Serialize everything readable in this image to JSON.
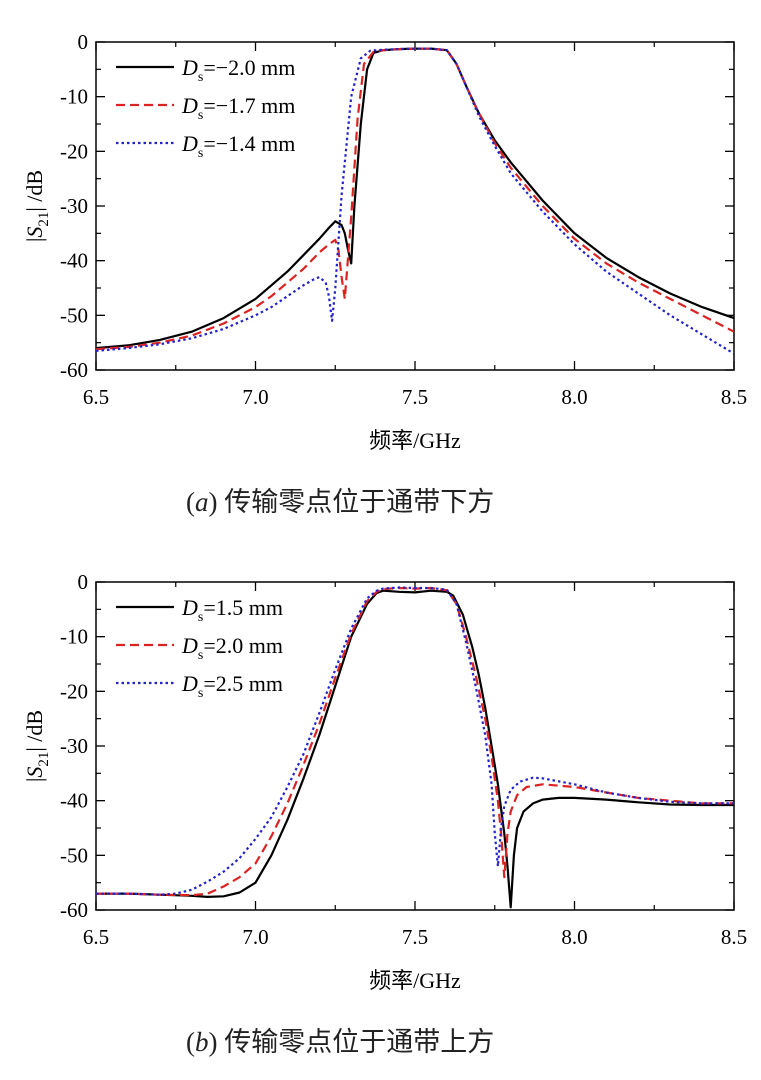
{
  "chart_data": [
    {
      "type": "line",
      "xlabel": "频率/GHz",
      "ylabel": "|S21| /dB",
      "xlim": [
        6.5,
        8.5
      ],
      "ylim": [
        -60,
        0
      ],
      "xticks": [
        "6.5",
        "7.0",
        "7.5",
        "8.0",
        "8.5"
      ],
      "yticks": [
        "0",
        "-10",
        "-20",
        "-30",
        "-40",
        "-50",
        "-60"
      ],
      "legend_position": "top-left",
      "caption": {
        "label": "a",
        "text": "传输零点位于通带下方"
      },
      "series": [
        {
          "name": "Ds=−2.0 mm",
          "legend_value": "=−2.0 mm",
          "color": "#000000",
          "dash": "solid",
          "x": [
            6.5,
            6.6,
            6.7,
            6.8,
            6.9,
            7.0,
            7.05,
            7.1,
            7.15,
            7.2,
            7.23,
            7.25,
            7.27,
            7.28,
            7.29,
            7.3,
            7.31,
            7.33,
            7.35,
            7.37,
            7.4,
            7.45,
            7.5,
            7.55,
            7.6,
            7.63,
            7.66,
            7.7,
            7.75,
            7.8,
            7.9,
            8.0,
            8.1,
            8.2,
            8.3,
            8.4,
            8.5
          ],
          "y": [
            -56,
            -55.5,
            -54.5,
            -53,
            -50.5,
            -47,
            -44.5,
            -42,
            -39,
            -36,
            -34,
            -32.8,
            -33.5,
            -35,
            -38,
            -40.5,
            -30,
            -15,
            -5,
            -2,
            -1.5,
            -1.3,
            -1.2,
            -1.2,
            -1.5,
            -4,
            -8,
            -13,
            -18,
            -22,
            -29,
            -35,
            -39.5,
            -43,
            -46,
            -48.5,
            -50.5
          ]
        },
        {
          "name": "Ds=−1.7 mm",
          "legend_value": "=−1.7 mm",
          "color": "#dd2222",
          "dash": "dash",
          "x": [
            6.5,
            6.6,
            6.7,
            6.8,
            6.9,
            7.0,
            7.05,
            7.1,
            7.15,
            7.2,
            7.23,
            7.25,
            7.26,
            7.27,
            7.28,
            7.3,
            7.32,
            7.34,
            7.37,
            7.4,
            7.45,
            7.5,
            7.55,
            7.6,
            7.63,
            7.66,
            7.7,
            7.75,
            7.8,
            7.9,
            8.0,
            8.1,
            8.2,
            8.3,
            8.4,
            8.5
          ],
          "y": [
            -56.2,
            -55.8,
            -55,
            -53.7,
            -51.5,
            -48.5,
            -46.5,
            -44,
            -41.5,
            -38.5,
            -37,
            -36.2,
            -38,
            -43,
            -47,
            -32,
            -14,
            -4,
            -1.8,
            -1.5,
            -1.3,
            -1.2,
            -1.2,
            -1.5,
            -4,
            -8,
            -13,
            -18.5,
            -23,
            -30,
            -36,
            -40.5,
            -44,
            -47,
            -50,
            -53
          ]
        },
        {
          "name": "Ds=−1.4 mm",
          "legend_value": "=−1.4 mm",
          "color": "#2222cc",
          "dash": "dot",
          "x": [
            6.5,
            6.6,
            6.7,
            6.8,
            6.9,
            7.0,
            7.05,
            7.1,
            7.15,
            7.18,
            7.2,
            7.22,
            7.23,
            7.24,
            7.25,
            7.27,
            7.3,
            7.33,
            7.36,
            7.4,
            7.45,
            7.5,
            7.55,
            7.6,
            7.63,
            7.66,
            7.7,
            7.75,
            7.8,
            7.9,
            8.0,
            8.1,
            8.2,
            8.3,
            8.4,
            8.5
          ],
          "y": [
            -56.5,
            -56,
            -55.3,
            -54.2,
            -52.5,
            -50,
            -48.5,
            -46.5,
            -44.5,
            -43.5,
            -43,
            -44,
            -46.5,
            -51,
            -45,
            -28,
            -10,
            -3,
            -1.6,
            -1.4,
            -1.3,
            -1.2,
            -1.2,
            -1.5,
            -4,
            -8,
            -13.5,
            -19,
            -24,
            -31,
            -37,
            -42,
            -46,
            -50,
            -53.5,
            -57
          ]
        }
      ]
    },
    {
      "type": "line",
      "xlabel": "频率/GHz",
      "ylabel": "|S21| /dB",
      "xlim": [
        6.5,
        8.5
      ],
      "ylim": [
        -60,
        0
      ],
      "xticks": [
        "6.5",
        "7.0",
        "7.5",
        "8.0",
        "8.5"
      ],
      "yticks": [
        "0",
        "-10",
        "-20",
        "-30",
        "-40",
        "-50",
        "-60"
      ],
      "legend_position": "top-left",
      "caption": {
        "label": "b",
        "text": "传输零点位于通带上方"
      },
      "series": [
        {
          "name": "Ds=1.5 mm",
          "legend_value": "=1.5 mm",
          "color": "#000000",
          "dash": "solid",
          "x": [
            6.5,
            6.6,
            6.7,
            6.8,
            6.85,
            6.9,
            6.95,
            7.0,
            7.05,
            7.1,
            7.15,
            7.2,
            7.25,
            7.3,
            7.35,
            7.38,
            7.4,
            7.45,
            7.5,
            7.55,
            7.6,
            7.62,
            7.65,
            7.68,
            7.7,
            7.72,
            7.74,
            7.76,
            7.78,
            7.79,
            7.8,
            7.81,
            7.82,
            7.84,
            7.87,
            7.9,
            7.95,
            8.0,
            8.1,
            8.2,
            8.3,
            8.4,
            8.5
          ],
          "y": [
            -57,
            -57,
            -57.2,
            -57.4,
            -57.6,
            -57.5,
            -56.8,
            -55,
            -50,
            -43.5,
            -36,
            -28,
            -19,
            -10,
            -4,
            -2,
            -1.6,
            -1.8,
            -1.9,
            -1.6,
            -1.8,
            -2.5,
            -6,
            -12,
            -17,
            -23,
            -30,
            -37,
            -46,
            -52,
            -59.5,
            -50,
            -45,
            -42,
            -40.5,
            -39.8,
            -39.5,
            -39.5,
            -39.8,
            -40.3,
            -40.7,
            -40.8,
            -40.8
          ]
        },
        {
          "name": "Ds=2.0 mm",
          "legend_value": "=2.0 mm",
          "color": "#dd2222",
          "dash": "dash",
          "x": [
            6.5,
            6.6,
            6.7,
            6.8,
            6.85,
            6.9,
            6.95,
            7.0,
            7.05,
            7.1,
            7.15,
            7.2,
            7.25,
            7.3,
            7.35,
            7.38,
            7.4,
            7.45,
            7.5,
            7.55,
            7.6,
            7.63,
            7.66,
            7.69,
            7.72,
            7.74,
            7.76,
            7.77,
            7.78,
            7.79,
            7.8,
            7.82,
            7.85,
            7.9,
            8.0,
            8.1,
            8.2,
            8.3,
            8.4,
            8.5
          ],
          "y": [
            -57,
            -57,
            -57.2,
            -57.3,
            -57,
            -55.7,
            -54,
            -51.5,
            -46.5,
            -40.5,
            -33.5,
            -26,
            -17.5,
            -9.5,
            -3.5,
            -1.8,
            -1.3,
            -1.1,
            -1.2,
            -1.1,
            -1.5,
            -4,
            -10,
            -17,
            -25,
            -32,
            -40,
            -46,
            -54,
            -46,
            -42,
            -39,
            -37.5,
            -37,
            -37.5,
            -38.5,
            -39.5,
            -40,
            -40.5,
            -40.5
          ]
        },
        {
          "name": "Ds=2.5 mm",
          "legend_value": "=2.5 mm",
          "color": "#2222cc",
          "dash": "dot",
          "x": [
            6.5,
            6.6,
            6.7,
            6.75,
            6.8,
            6.85,
            6.9,
            6.95,
            7.0,
            7.05,
            7.1,
            7.15,
            7.2,
            7.25,
            7.3,
            7.35,
            7.38,
            7.4,
            7.45,
            7.5,
            7.55,
            7.6,
            7.63,
            7.66,
            7.69,
            7.72,
            7.74,
            7.75,
            7.76,
            7.77,
            7.78,
            7.8,
            7.83,
            7.87,
            7.9,
            8.0,
            8.1,
            8.2,
            8.3,
            8.4,
            8.5
          ],
          "y": [
            -57,
            -57,
            -57.2,
            -57,
            -56.3,
            -54.8,
            -53,
            -50.5,
            -47,
            -43,
            -37.5,
            -31.5,
            -24,
            -16,
            -8.5,
            -3,
            -1.6,
            -1.2,
            -1,
            -1.1,
            -1.1,
            -1.4,
            -4,
            -11,
            -19,
            -28,
            -37,
            -46,
            -52,
            -45,
            -41,
            -38,
            -36.5,
            -35.8,
            -35.9,
            -37,
            -38.5,
            -39.5,
            -40.2,
            -40.5,
            -40.5
          ]
        }
      ]
    }
  ]
}
